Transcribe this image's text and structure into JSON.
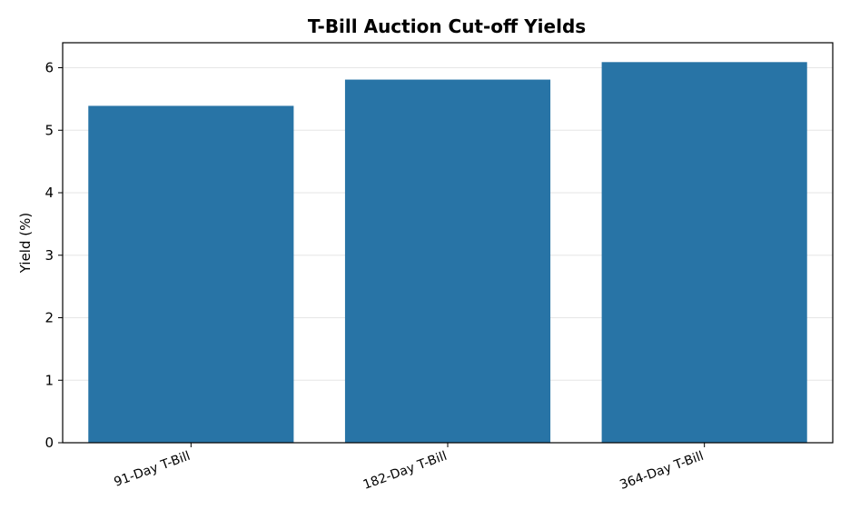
{
  "chart_data": {
    "type": "bar",
    "title": "T-Bill Auction Cut-off Yields",
    "xlabel": "",
    "ylabel": "Yield (%)",
    "categories": [
      "91-Day T-Bill",
      "182-Day T-Bill",
      "364-Day T-Bill"
    ],
    "values": [
      5.39,
      5.81,
      6.09
    ],
    "ylim": [
      0,
      6.4
    ],
    "yticks": [
      0,
      1,
      2,
      3,
      4,
      5,
      6
    ],
    "grid": "y",
    "legend": "none",
    "colors": {
      "bar": "#2874a6",
      "grid": "#e6e6e6",
      "axis": "#000000"
    }
  }
}
